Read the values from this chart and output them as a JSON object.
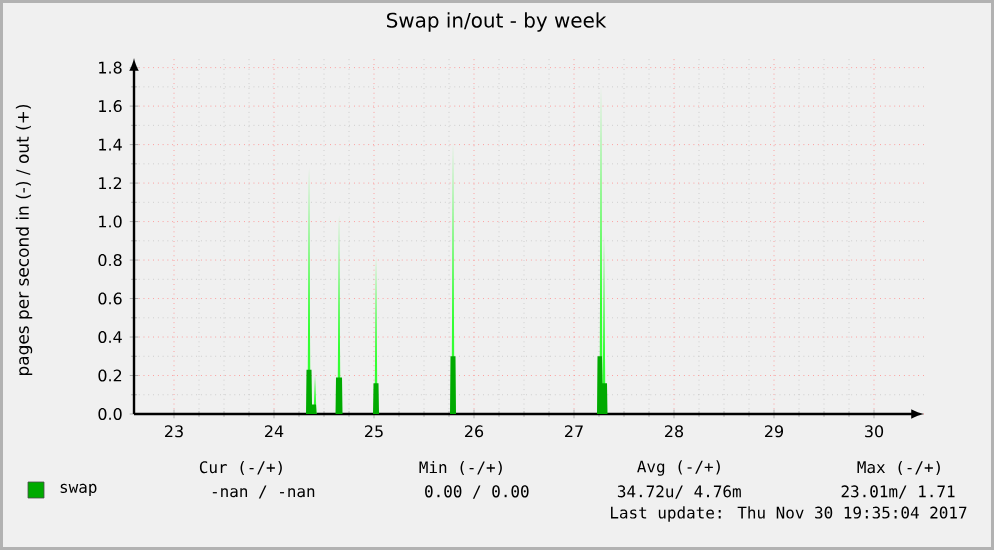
{
  "chart_data": {
    "type": "area",
    "title": "Swap in/out - by week",
    "ylabel": "pages per second in (-) / out (+)",
    "series": [
      {
        "color": "#33ff33",
        "x": [
          22.6,
          24.335,
          24.35,
          24.365,
          24.395,
          24.41,
          24.425,
          24.635,
          24.65,
          24.665,
          25.005,
          25.02,
          25.035,
          25.775,
          25.79,
          25.805,
          27.255,
          27.27,
          27.285,
          27.3,
          27.315,
          30.5
        ],
        "values": [
          0,
          0,
          1.28,
          0,
          0,
          0.2,
          0,
          0,
          1.03,
          0,
          0,
          0.82,
          0,
          0,
          1.41,
          0,
          0,
          1.7,
          0,
          0.93,
          0,
          0
        ]
      },
      {
        "name": "swap",
        "color": "#00aa00",
        "x": [
          22.6,
          24.32,
          24.325,
          24.375,
          24.38,
          24.42,
          24.425,
          24.615,
          24.62,
          24.68,
          24.685,
          24.99,
          24.995,
          25.045,
          25.05,
          25.76,
          25.765,
          25.815,
          25.82,
          27.23,
          27.235,
          27.28,
          27.285,
          27.33,
          27.335,
          30.5
        ],
        "values": [
          0,
          0,
          0.23,
          0.23,
          0.05,
          0.05,
          0,
          0,
          0.19,
          0.19,
          0,
          0,
          0.16,
          0.16,
          0,
          0,
          0.3,
          0.3,
          0,
          0,
          0.3,
          0.3,
          0.16,
          0.16,
          0,
          0
        ]
      }
    ],
    "xlim": [
      22.6,
      30.5
    ],
    "ylim": [
      0,
      1.85
    ],
    "xticks": [
      23,
      24,
      25,
      26,
      27,
      28,
      29,
      30
    ],
    "yticks": [
      {
        "value": 0,
        "label": "0.0"
      },
      0.2,
      0.4,
      0.6,
      0.8,
      {
        "value": 1,
        "label": "1.0"
      },
      1.2,
      1.4,
      1.6,
      1.8
    ],
    "grid": true,
    "legend": "bottom",
    "annotations": [
      "Cur (-/+)",
      "Min (-/+)",
      "Avg (-/+)",
      "Max (-/+)",
      "-nan /   -nan",
      "0.00 /  0.00",
      "34.72u/  4.76m",
      "23.01m/  1.71",
      "Last update: Thu Nov 30 19:35:04 2017"
    ]
  }
}
